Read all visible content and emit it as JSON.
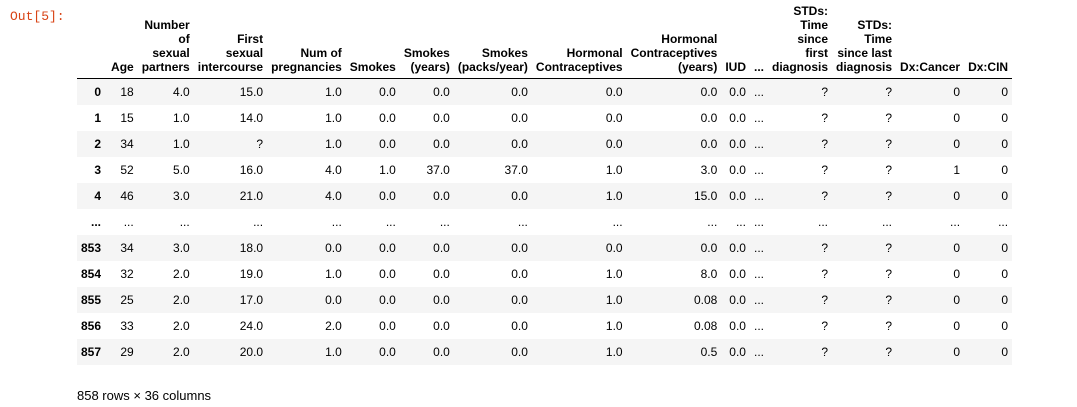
{
  "prompt": "Out[5]:",
  "summary": "858 rows × 36 columns",
  "columns": [
    "",
    "Age",
    "Number\nof\nsexual\npartners",
    "First\nsexual\nintercourse",
    "Num of\npregnancies",
    "Smokes",
    "Smokes\n(years)",
    "Smokes\n(packs/year)",
    "Hormonal\nContraceptives",
    "Hormonal\nContraceptives\n(years)",
    "IUD",
    "...",
    "STDs:\nTime\nsince\nfirst\ndiagnosis",
    "STDs:\nTime\nsince last\ndiagnosis",
    "Dx:Cancer",
    "Dx:CIN"
  ],
  "rows": [
    [
      "0",
      "18",
      "4.0",
      "15.0",
      "1.0",
      "0.0",
      "0.0",
      "0.0",
      "0.0",
      "0.0",
      "0.0",
      "...",
      "?",
      "?",
      "0",
      "0"
    ],
    [
      "1",
      "15",
      "1.0",
      "14.0",
      "1.0",
      "0.0",
      "0.0",
      "0.0",
      "0.0",
      "0.0",
      "0.0",
      "...",
      "?",
      "?",
      "0",
      "0"
    ],
    [
      "2",
      "34",
      "1.0",
      "?",
      "1.0",
      "0.0",
      "0.0",
      "0.0",
      "0.0",
      "0.0",
      "0.0",
      "...",
      "?",
      "?",
      "0",
      "0"
    ],
    [
      "3",
      "52",
      "5.0",
      "16.0",
      "4.0",
      "1.0",
      "37.0",
      "37.0",
      "1.0",
      "3.0",
      "0.0",
      "...",
      "?",
      "?",
      "1",
      "0"
    ],
    [
      "4",
      "46",
      "3.0",
      "21.0",
      "4.0",
      "0.0",
      "0.0",
      "0.0",
      "1.0",
      "15.0",
      "0.0",
      "...",
      "?",
      "?",
      "0",
      "0"
    ],
    [
      "...",
      "...",
      "...",
      "...",
      "...",
      "...",
      "...",
      "...",
      "...",
      "...",
      "...",
      "...",
      "...",
      "...",
      "...",
      "..."
    ],
    [
      "853",
      "34",
      "3.0",
      "18.0",
      "0.0",
      "0.0",
      "0.0",
      "0.0",
      "0.0",
      "0.0",
      "0.0",
      "...",
      "?",
      "?",
      "0",
      "0"
    ],
    [
      "854",
      "32",
      "2.0",
      "19.0",
      "1.0",
      "0.0",
      "0.0",
      "0.0",
      "1.0",
      "8.0",
      "0.0",
      "...",
      "?",
      "?",
      "0",
      "0"
    ],
    [
      "855",
      "25",
      "2.0",
      "17.0",
      "0.0",
      "0.0",
      "0.0",
      "0.0",
      "1.0",
      "0.08",
      "0.0",
      "...",
      "?",
      "?",
      "0",
      "0"
    ],
    [
      "856",
      "33",
      "2.0",
      "24.0",
      "2.0",
      "0.0",
      "0.0",
      "0.0",
      "1.0",
      "0.08",
      "0.0",
      "...",
      "?",
      "?",
      "0",
      "0"
    ],
    [
      "857",
      "29",
      "2.0",
      "20.0",
      "1.0",
      "0.0",
      "0.0",
      "0.0",
      "1.0",
      "0.5",
      "0.0",
      "...",
      "?",
      "?",
      "0",
      "0"
    ]
  ]
}
